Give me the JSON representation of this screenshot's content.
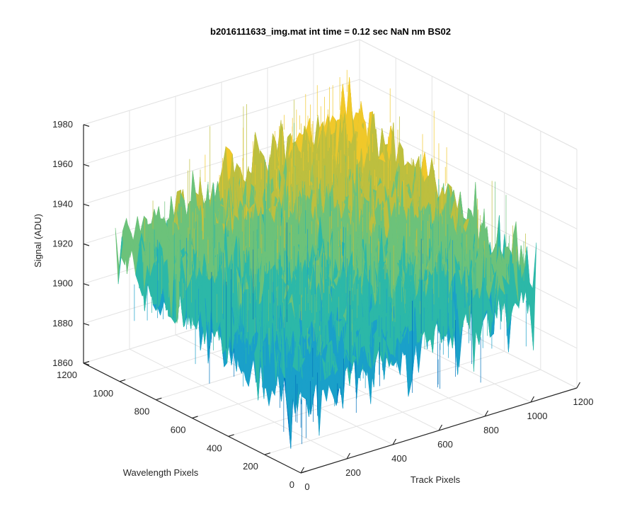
{
  "chart_data": {
    "type": "surface",
    "title": "b2016111633_img.mat int time = 0.12 sec  NaN nm BS02",
    "xlabel": "Track Pixels",
    "ylabel": "Wavelength Pixels",
    "zlabel": "Signal (ADU)",
    "xlim": [
      0,
      1200
    ],
    "ylim": [
      0,
      1200
    ],
    "zlim": [
      1860,
      1980
    ],
    "xticks": [
      "0",
      "200",
      "400",
      "600",
      "800",
      "1000",
      "1200"
    ],
    "yticks": [
      "0",
      "200",
      "400",
      "600",
      "800",
      "1000",
      "1200"
    ],
    "zticks": [
      "1860",
      "1880",
      "1900",
      "1920",
      "1940",
      "1960",
      "1980"
    ],
    "grid": true,
    "colormap": "parula",
    "surface_extent": {
      "x": [
        0,
        1024
      ],
      "y": [
        0,
        1024
      ]
    },
    "signal_summary": {
      "corner_x0_y0": 1900,
      "corner_x1024_y0": 1920,
      "corner_x0_y1024": 1925,
      "corner_x1024_y1024": 1955,
      "noise_peak_to_peak": 40
    },
    "colors": [
      "#0072bd",
      "#1aa0c9",
      "#2cb8a8",
      "#6cc27a",
      "#bdbf3f",
      "#f0c82a"
    ]
  }
}
